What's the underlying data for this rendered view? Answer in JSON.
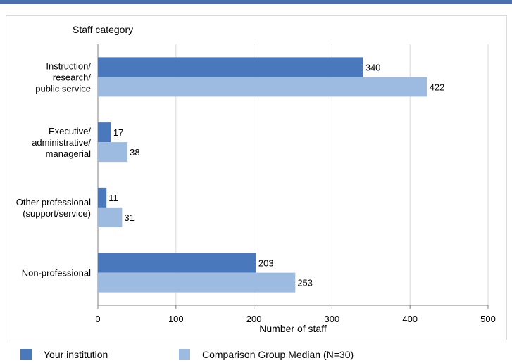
{
  "colors": {
    "institution": "#4a78bd",
    "comparison": "#9dbae0",
    "grid": "#d9d9d9",
    "axis": "#808080",
    "top_rule": "#4a6fae"
  },
  "legend": {
    "institution_label": "Your institution",
    "comparison_label": "Comparison Group Median (N=30)"
  },
  "chart_data": {
    "type": "bar",
    "orientation": "horizontal",
    "title": "",
    "ylabel": "Staff category",
    "xlabel": "Number of staff",
    "xlim": [
      0,
      500
    ],
    "xticks": [
      0,
      100,
      200,
      300,
      400,
      500
    ],
    "grid": true,
    "legend_position": "bottom",
    "categories": [
      [
        "Instruction/",
        "research/",
        "public service"
      ],
      [
        "Executive/",
        "administrative/",
        "managerial"
      ],
      [
        "Other professional",
        "(support/service)"
      ],
      [
        "Non-professional"
      ]
    ],
    "series": [
      {
        "name": "Your institution",
        "color": "#4a78bd",
        "values": [
          340,
          17,
          11,
          203
        ]
      },
      {
        "name": "Comparison Group Median (N=30)",
        "color": "#9dbae0",
        "values": [
          422,
          38,
          31,
          253
        ]
      }
    ]
  }
}
